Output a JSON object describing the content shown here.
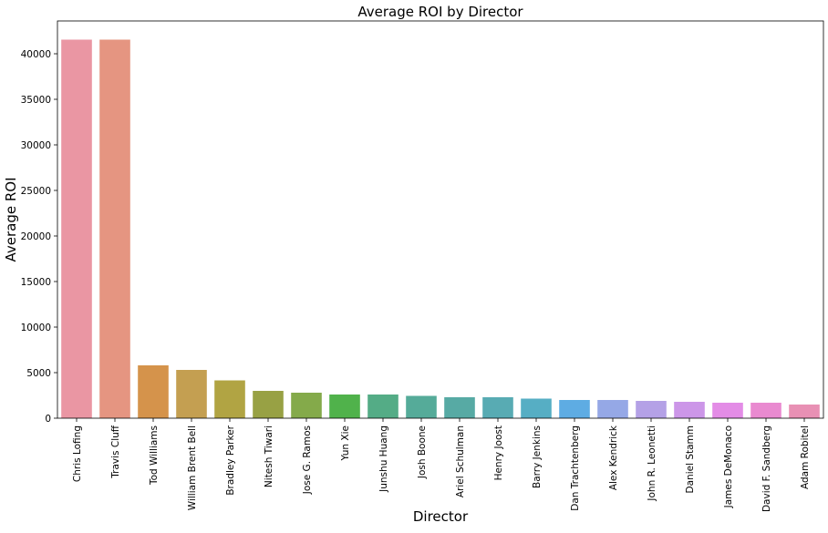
{
  "chart_data": {
    "type": "bar",
    "title": "Average ROI by Director",
    "xlabel": "Director",
    "ylabel": "Average ROI",
    "ylim": [
      0,
      43600
    ],
    "yticks": [
      0,
      5000,
      10000,
      15000,
      20000,
      25000,
      30000,
      35000,
      40000
    ],
    "grid": false,
    "legend": "none",
    "categories": [
      "Chris Lofing",
      "Travis Cluff",
      "Tod Williams",
      "William Brent Bell",
      "Bradley Parker",
      "Nitesh Tiwari",
      "Jose G. Ramos",
      "Yun Xie",
      "Junshu Huang",
      "Josh Boone",
      "Ariel Schulman",
      "Henry Joost",
      "Barry Jenkins",
      "Dan Trachtenberg",
      "Alex Kendrick",
      "John R. Leonetti",
      "Daniel Stamm",
      "James DeMonaco",
      "David F. Sandberg",
      "Adam Robitel"
    ],
    "values": [
      41550,
      41550,
      5800,
      5300,
      4150,
      3000,
      2800,
      2600,
      2600,
      2450,
      2300,
      2300,
      2150,
      2000,
      2000,
      1900,
      1800,
      1700,
      1700,
      1500
    ],
    "colors": [
      "#ea96a3",
      "#e59581",
      "#d5934b",
      "#c49f51",
      "#b1a443",
      "#98a144",
      "#84aa4a",
      "#50b24b",
      "#54ac86",
      "#55ab99",
      "#57aaa4",
      "#58abb3",
      "#56aec4",
      "#5eace3",
      "#95a8e6",
      "#b4a1e6",
      "#cc96e8",
      "#e38ce6",
      "#e98ad0",
      "#e890b4"
    ]
  }
}
